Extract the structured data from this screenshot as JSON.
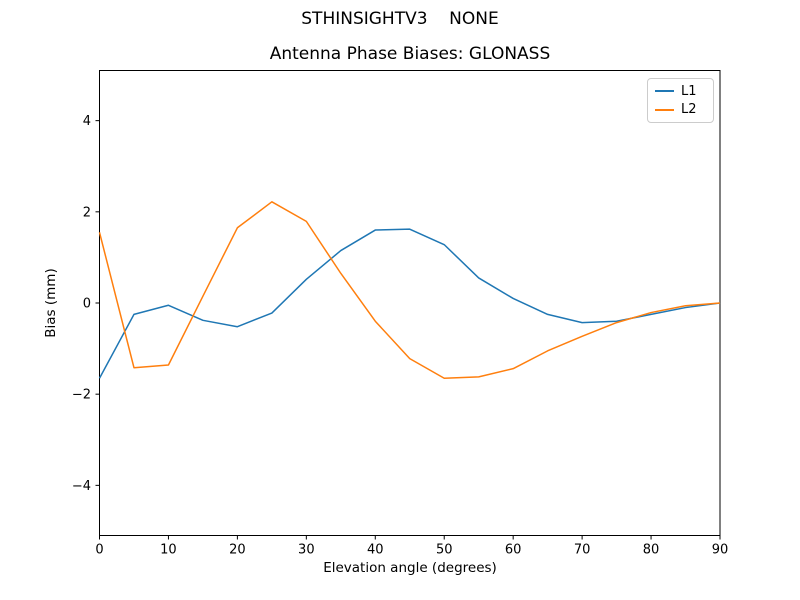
{
  "figure": {
    "suptitle": "STHINSIGHTV3    NONE",
    "background": "#ffffff"
  },
  "chart_data": {
    "type": "line",
    "title": "Antenna Phase Biases: GLONASS",
    "xlabel": "Elevation angle (degrees)",
    "ylabel": "Bias (mm)",
    "xlim": [
      0,
      90
    ],
    "ylim": [
      -5.1,
      5.1
    ],
    "xticks": [
      0,
      10,
      20,
      30,
      40,
      50,
      60,
      70,
      80,
      90
    ],
    "yticks": [
      -4,
      -2,
      0,
      2,
      4
    ],
    "grid": false,
    "legend_position": "top-right",
    "x": [
      0,
      5,
      10,
      15,
      20,
      25,
      30,
      35,
      40,
      45,
      50,
      55,
      60,
      65,
      70,
      75,
      80,
      85,
      90
    ],
    "series": [
      {
        "name": "L1",
        "color": "#1f77b4",
        "values": [
          -1.65,
          -0.25,
          -0.05,
          -0.38,
          -0.52,
          -0.22,
          0.52,
          1.15,
          1.6,
          1.62,
          1.28,
          0.55,
          0.1,
          -0.25,
          -0.43,
          -0.4,
          -0.25,
          -0.1,
          0.0
        ]
      },
      {
        "name": "L2",
        "color": "#ff7f0e",
        "values": [
          1.55,
          -1.42,
          -1.36,
          0.15,
          1.65,
          2.22,
          1.79,
          0.65,
          -0.4,
          -1.22,
          -1.65,
          -1.62,
          -1.44,
          -1.05,
          -0.73,
          -0.43,
          -0.21,
          -0.06,
          0.0
        ]
      }
    ],
    "axis_color": "#000000",
    "tick_label_color": "#000000"
  }
}
